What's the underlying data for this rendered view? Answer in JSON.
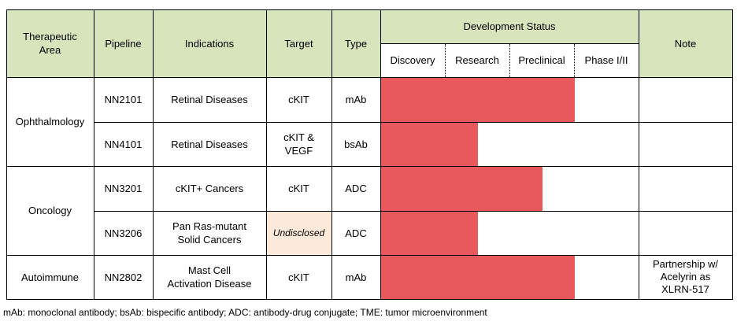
{
  "headers": {
    "therapeutic_area": "Therapeutic\nArea",
    "pipeline": "Pipeline",
    "indications": "Indications",
    "target": "Target",
    "type": "Type",
    "development_status": "Development Status",
    "note": "Note",
    "stages": [
      "Discovery",
      "Research",
      "Preclinical",
      "Phase I/II"
    ]
  },
  "areas": [
    "Ophthalmology",
    "Oncology",
    "Autoimmune"
  ],
  "rows": [
    {
      "pipeline": "NN2101",
      "indication": "Retinal Diseases",
      "target": "cKIT",
      "type": "mAb",
      "progress_stages": 3.0,
      "note": ""
    },
    {
      "pipeline": "NN4101",
      "indication": "Retinal Diseases",
      "target": "cKIT &\nVEGF",
      "type": "bsAb",
      "progress_stages": 1.5,
      "note": ""
    },
    {
      "pipeline": "NN3201",
      "indication": "cKIT+ Cancers",
      "target": "cKIT",
      "type": "ADC",
      "progress_stages": 2.5,
      "note": ""
    },
    {
      "pipeline": "NN3206",
      "indication": "Pan Ras-mutant\nSolid Cancers",
      "target": "Undisclosed",
      "type": "ADC",
      "progress_stages": 1.5,
      "note": ""
    },
    {
      "pipeline": "NN2802",
      "indication": "Mast Cell\nActivation Disease",
      "target": "cKIT",
      "type": "mAb",
      "progress_stages": 3.0,
      "note": "Partnership w/\nAcelyrin as\nXLRN-517"
    }
  ],
  "colors": {
    "header_bg": "#d8e4bc",
    "progress_bar": "#e8595c",
    "undisclosed_bg": "#fde9d9"
  },
  "footer": "mAb: monoclonal antibody; bsAb: bispecific antibody; ADC: antibody-drug conjugate; TME: tumor microenvironment"
}
